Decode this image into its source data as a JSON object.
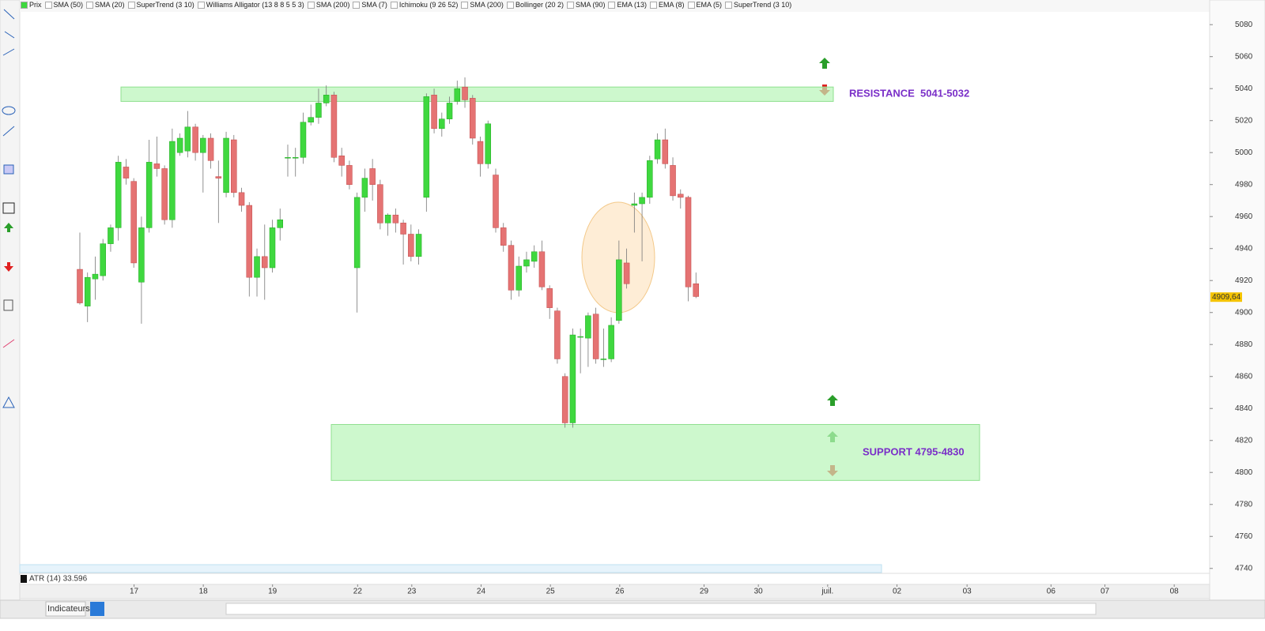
{
  "toolbar": {
    "indicators": [
      "Prix",
      "SMA (50)",
      "SMA (20)",
      "SuperTrend (3 10)",
      "Williams Alligator (13 8 8 5 5 3)",
      "SMA (200)",
      "SMA (7)",
      "Ichimoku (9 26 52)",
      "SMA (200)",
      "Bollinger (20 2)",
      "SMA (90)",
      "EMA (13)",
      "EMA (8)",
      "EMA (5)",
      "SuperTrend (3 10)"
    ]
  },
  "indicator_panel": "ATR (14) 33.596",
  "bottom_toolbar": {
    "menu": "Indicateurs"
  },
  "chart_data": {
    "type": "candlestick",
    "open": [
      4927,
      4904,
      4921,
      4923,
      4943,
      4953,
      4991,
      4982,
      4919,
      4953,
      4993,
      4990,
      4958,
      5000,
      5001,
      5016,
      5000,
      5009,
      4985,
      4975,
      5008,
      4975,
      4967,
      4922,
      4935,
      4928,
      4953,
      4997,
      4997,
      4997,
      5019,
      5022,
      5031,
      5036,
      4998,
      4992,
      4928,
      4972,
      4990,
      4980,
      4956,
      4961,
      4956,
      4949,
      4935,
      4972,
      5036,
      5015,
      5021,
      5032,
      5041,
      5034,
      5007,
      4993,
      4986,
      4953,
      4942,
      4914,
      4929,
      4932,
      4938,
      4915,
      4901,
      4860,
      4831,
      4885,
      4884,
      4899,
      4871,
      4871,
      4895,
      4931,
      4967,
      4968,
      4972,
      4996,
      5008,
      4992,
      4974,
      4972,
      4918
    ],
    "high": [
      4950,
      4925,
      4935,
      4946,
      4955,
      4998,
      4996,
      4984,
      4960,
      5008,
      5010,
      4992,
      5015,
      5012,
      5026,
      5018,
      5011,
      5012,
      4995,
      5013,
      5011,
      4978,
      4969,
      4940,
      4955,
      4958,
      4965,
      5005,
      5003,
      5025,
      5030,
      5040,
      5042,
      5038,
      5003,
      4995,
      4975,
      4990,
      4996,
      4983,
      4962,
      4965,
      4958,
      4955,
      4952,
      5037,
      5040,
      5025,
      5035,
      5045,
      5047,
      5036,
      5010,
      5020,
      4990,
      4956,
      4945,
      4935,
      4938,
      4942,
      4945,
      4917,
      4903,
      4862,
      4890,
      4890,
      4900,
      4903,
      4890,
      4897,
      4945,
      4940,
      4975,
      4975,
      4998,
      5012,
      5015,
      4997,
      4977,
      4973,
      4925
    ],
    "low": [
      4905,
      4894,
      4908,
      4920,
      4938,
      4945,
      4980,
      4928,
      4893,
      4950,
      4985,
      4955,
      4953,
      4998,
      4997,
      4995,
      4975,
      4990,
      4956,
      4972,
      4972,
      4963,
      4910,
      4910,
      4908,
      4925,
      4945,
      4985,
      4985,
      4993,
      5017,
      5018,
      5029,
      4994,
      4985,
      4977,
      4900,
      4963,
      4970,
      4952,
      4948,
      4950,
      4930,
      4932,
      4930,
      4963,
      5012,
      5010,
      5018,
      5030,
      5028,
      5005,
      4985,
      4990,
      4950,
      4938,
      4908,
      4910,
      4925,
      4928,
      4914,
      4896,
      4868,
      4828,
      4828,
      4862,
      4866,
      4868,
      4866,
      4869,
      4893,
      4915,
      4950,
      4932,
      4968,
      4993,
      4990,
      4970,
      4965,
      4907,
      4909
    ],
    "close": [
      4906,
      4922,
      4924,
      4943,
      4953,
      4994,
      4984,
      4931,
      4953,
      4994,
      4990,
      4958,
      5007,
      5009,
      5016,
      5000,
      5009,
      4995,
      4984,
      5009,
      4975,
      4967,
      4922,
      4935,
      4928,
      4953,
      4958,
      4997,
      4997,
      5019,
      5022,
      5031,
      5036,
      4997,
      4992,
      4980,
      4972,
      4984,
      4980,
      4956,
      4961,
      4956,
      4949,
      4935,
      4949,
      5035,
      5015,
      5021,
      5031,
      5040,
      5033,
      5009,
      4993,
      5018,
      4953,
      4942,
      4914,
      4929,
      4933,
      4938,
      4916,
      4903,
      4871,
      4831,
      4886,
      4885,
      4898,
      4871,
      4871,
      4892,
      4933,
      4918,
      4968,
      4972,
      4995,
      5008,
      4993,
      4973,
      4972,
      4916,
      4910
    ],
    "up_color": "#3fd83f",
    "down_color": "#e57373",
    "ylim": [
      4730,
      5088
    ],
    "yticks": [
      5080,
      5060,
      5040,
      5020,
      5000,
      4980,
      4960,
      4940,
      4920,
      4900,
      4880,
      4860,
      4840,
      4820,
      4800,
      4780,
      4760,
      4740
    ],
    "xlim": [
      -7.8,
      146.7
    ],
    "xticks": [
      {
        "value": 7.04,
        "label": "17"
      },
      {
        "value": 16.03,
        "label": "18"
      },
      {
        "value": 25.02,
        "label": "19"
      },
      {
        "value": 36.07,
        "label": "22"
      },
      {
        "value": 43.1,
        "label": "23"
      },
      {
        "value": 52.1,
        "label": "24"
      },
      {
        "value": 61.1,
        "label": "25"
      },
      {
        "value": 70.1,
        "label": "26"
      },
      {
        "value": 81.05,
        "label": "29"
      },
      {
        "value": 88.1,
        "label": "30"
      },
      {
        "value": 97.1,
        "label": "juil."
      },
      {
        "value": 106.1,
        "label": "02"
      },
      {
        "value": 115.2,
        "label": "03"
      },
      {
        "value": 126.1,
        "label": "06"
      },
      {
        "value": 133.1,
        "label": "07"
      },
      {
        "value": 142.1,
        "label": "08"
      }
    ],
    "last_price": {
      "value": 4909.64,
      "label": "4909,64"
    },
    "zones": [
      {
        "label": "RESISTANCE  5041-5032",
        "low": 5032,
        "high": 5041
      },
      {
        "label": "SUPPORT 4795-4830",
        "low": 4795,
        "high": 4830
      }
    ]
  }
}
